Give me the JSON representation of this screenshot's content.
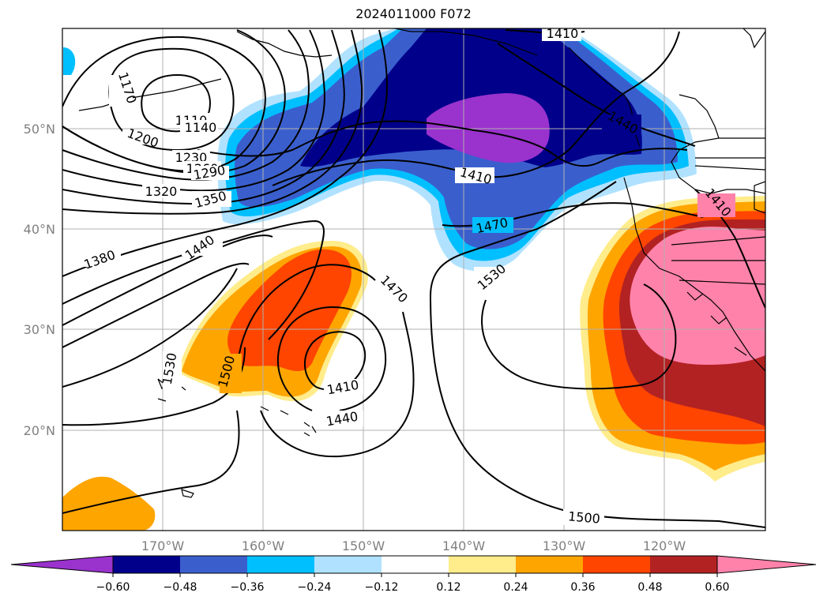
{
  "title": "2024011000 F072",
  "map": {
    "lon_labels": [
      "170°W",
      "160°W",
      "150°W",
      "140°W",
      "130°W",
      "120°W"
    ],
    "lat_labels": [
      "20°N",
      "30°N",
      "40°N",
      "50°N"
    ],
    "contour_labels": [
      "1110",
      "1140",
      "1170",
      "1200",
      "1230",
      "1260",
      "1290",
      "1320",
      "1350",
      "1380",
      "1410",
      "1410",
      "1410",
      "1410",
      "1440",
      "1440",
      "1440",
      "1470",
      "1470",
      "1500",
      "1500",
      "1530",
      "1530"
    ]
  },
  "colorbar": {
    "colors": [
      "#9a32cd",
      "#00008b",
      "#3a5fcd",
      "#00bfff",
      "#b0e2ff",
      "#ffffff",
      "#ffec8b",
      "#ffa500",
      "#ff4500",
      "#b22222",
      "#ff82ab"
    ],
    "ticks": [
      "−0.60",
      "−0.48",
      "−0.36",
      "−0.24",
      "−0.12",
      "0.12",
      "0.24",
      "0.36",
      "0.48",
      "0.60"
    ]
  }
}
